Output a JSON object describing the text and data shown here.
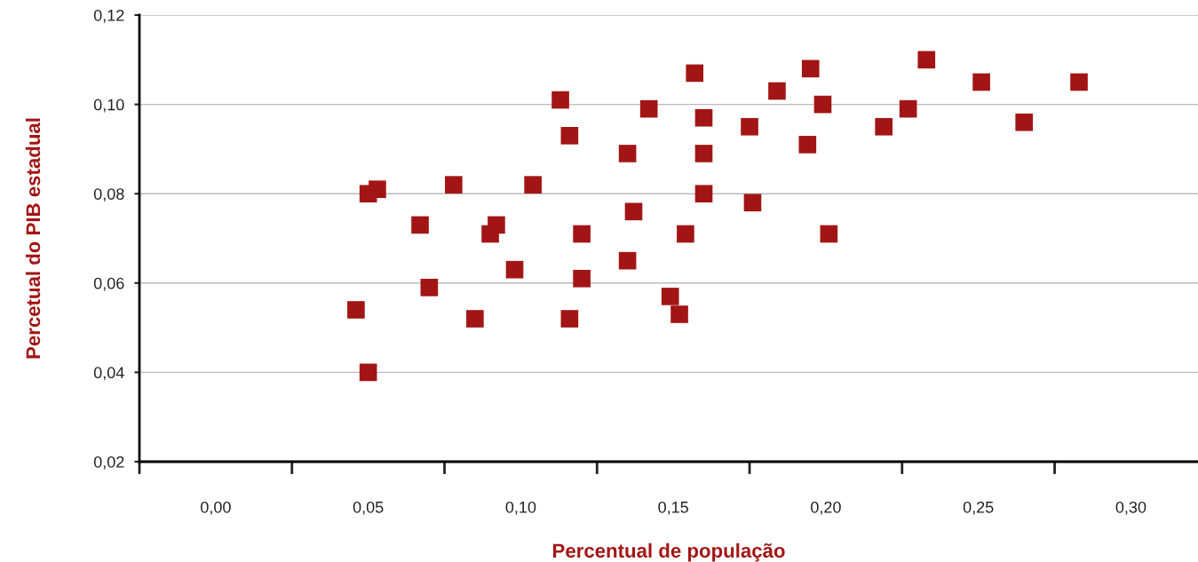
{
  "chart_data": {
    "type": "scatter",
    "xlabel": "Percentual de população",
    "ylabel": "Percetual do PIB estadual",
    "x": [
      0.046,
      0.05,
      0.053,
      0.05,
      0.067,
      0.07,
      0.078,
      0.085,
      0.09,
      0.092,
      0.098,
      0.104,
      0.113,
      0.116,
      0.116,
      0.12,
      0.12,
      0.135,
      0.135,
      0.137,
      0.142,
      0.149,
      0.152,
      0.154,
      0.157,
      0.16,
      0.16,
      0.16,
      0.175,
      0.176,
      0.184,
      0.194,
      0.195,
      0.199,
      0.201,
      0.219,
      0.227,
      0.233,
      0.251,
      0.265,
      0.283
    ],
    "series": [
      {
        "color": "#a31515",
        "values": [
          0.054,
          0.08,
          0.081,
          0.04,
          0.073,
          0.059,
          0.082,
          0.052,
          0.071,
          0.073,
          0.063,
          0.082,
          0.101,
          0.093,
          0.052,
          0.071,
          0.061,
          0.089,
          0.065,
          0.076,
          0.099,
          0.057,
          0.053,
          0.071,
          0.107,
          0.097,
          0.089,
          0.08,
          0.095,
          0.078,
          0.103,
          0.091,
          0.108,
          0.1,
          0.071,
          0.095,
          0.099,
          0.11,
          0.105,
          0.096,
          0.105
        ]
      }
    ],
    "marker": "square",
    "grid": "y",
    "xlim": [
      -0.025,
      0.322
    ],
    "xticks": [
      {
        "value": -0.025,
        "label": null
      },
      {
        "value": 0,
        "label": "0,00"
      },
      {
        "value": 0.025,
        "label": null
      },
      {
        "value": 0.05,
        "label": "0,05"
      },
      {
        "value": 0.075,
        "label": null
      },
      {
        "value": 0.1,
        "label": "0,10"
      },
      {
        "value": 0.125,
        "label": null
      },
      {
        "value": 0.15,
        "label": "0,15"
      },
      {
        "value": 0.175,
        "label": null
      },
      {
        "value": 0.2,
        "label": "0,20"
      },
      {
        "value": 0.225,
        "label": null
      },
      {
        "value": 0.25,
        "label": "0,25"
      },
      {
        "value": 0.275,
        "label": null
      },
      {
        "value": 0.3,
        "label": "0,30"
      }
    ],
    "ylim": [
      0.02,
      0.12
    ],
    "yticks": [
      {
        "value": 0.02,
        "label": "0,02"
      },
      {
        "value": 0.04,
        "label": "0,04"
      },
      {
        "value": 0.06,
        "label": "0,06"
      },
      {
        "value": 0.08,
        "label": "0,08"
      },
      {
        "value": 0.1,
        "label": "0,10"
      },
      {
        "value": 0.12,
        "label": "0,12"
      }
    ]
  }
}
